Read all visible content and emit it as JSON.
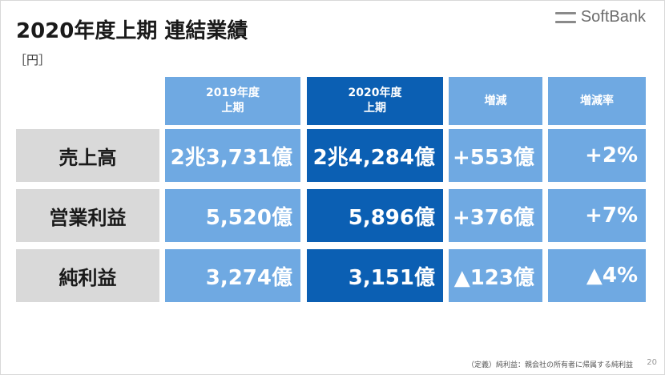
{
  "title": "2020年度上期 連結業績",
  "unit": "［円］",
  "logo": {
    "text": "SoftBank",
    "color": "#6d6d6d"
  },
  "columns": [
    {
      "line1": "2019年度",
      "line2": "上期"
    },
    {
      "line1": "2020年度",
      "line2": "上期"
    },
    {
      "line1": "増減",
      "line2": ""
    },
    {
      "line1": "増減率",
      "line2": ""
    }
  ],
  "rows": [
    {
      "label": "売上高",
      "values": [
        "2兆3,731億",
        "2兆4,284億",
        "+553億",
        "+2%"
      ]
    },
    {
      "label": "営業利益",
      "values": [
        "5,520億",
        "5,896億",
        "+376億",
        "+7%"
      ]
    },
    {
      "label": "純利益",
      "values": [
        "3,274億",
        "3,151億",
        "▲123億",
        "▲4%"
      ]
    }
  ],
  "footnote": "（定義）純利益：親会社の所有者に帰属する純利益",
  "page_number": "20",
  "colors": {
    "light_blue": "#6fa9e2",
    "dark_blue": "#0b5fb3",
    "label_gray": "#d9d9d9"
  }
}
